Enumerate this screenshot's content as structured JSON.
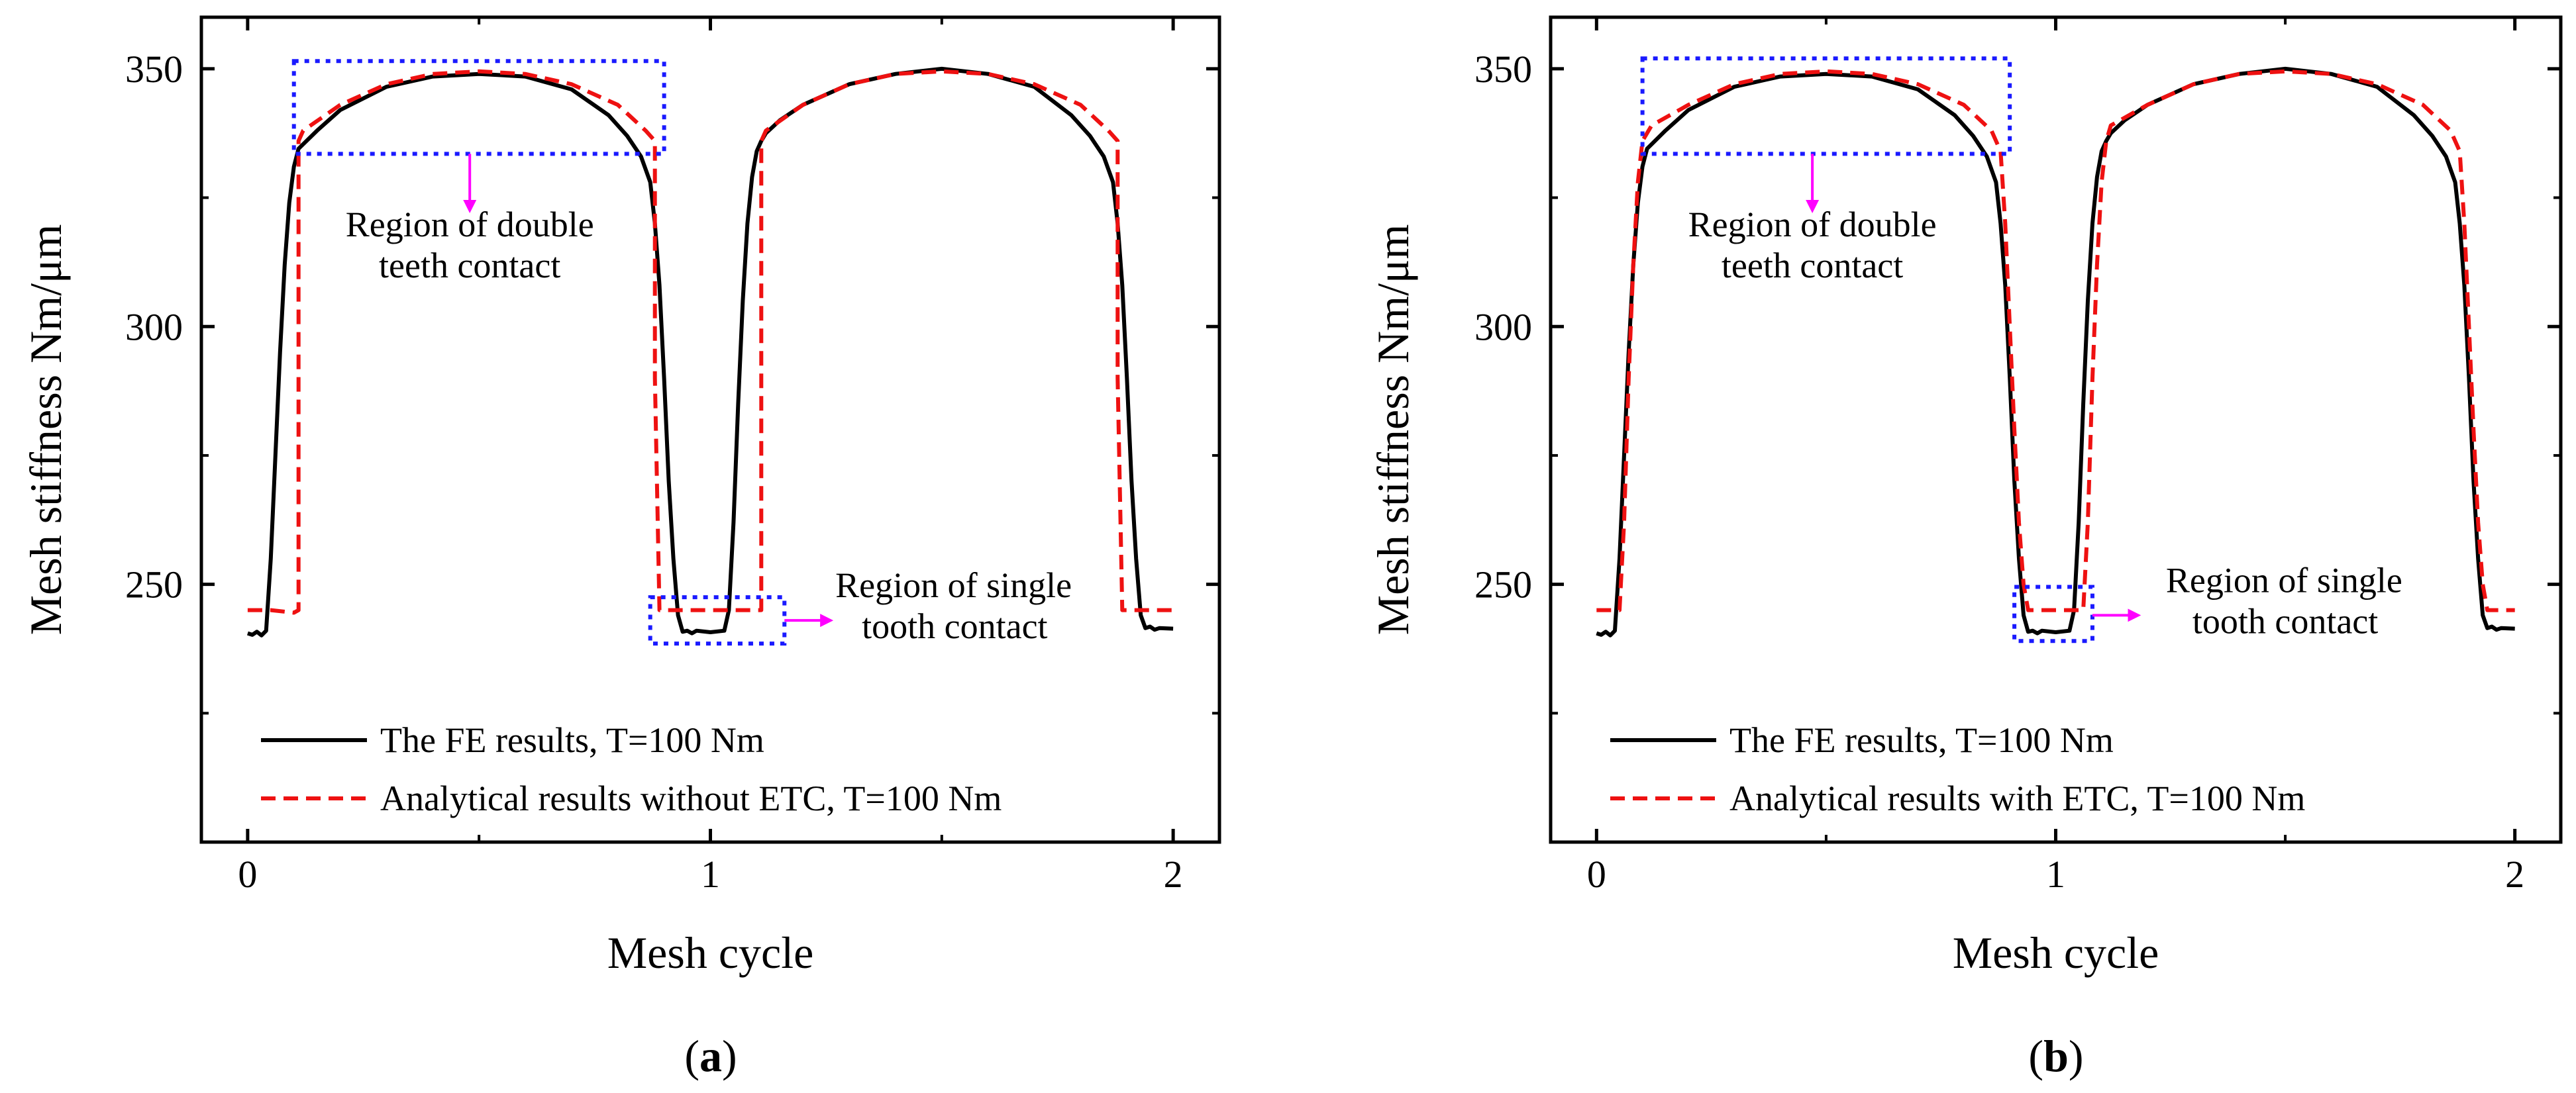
{
  "chart_data": [
    {
      "type": "line",
      "panel_label": {
        "open": "(",
        "letter": "a",
        "close": ")"
      },
      "xlabel": "Mesh cycle",
      "ylabel": "Mesh stiffness Nm/μm",
      "xlim": [
        -0.1,
        2.1
      ],
      "ylim": [
        200,
        360
      ],
      "xticks": [
        0,
        1,
        2
      ],
      "xtick_labels": [
        "0",
        "1",
        "2"
      ],
      "yticks": [
        250,
        300,
        350
      ],
      "ytick_labels": [
        "250",
        "300",
        "350"
      ],
      "legend": [
        {
          "label": "The FE results, T=100 Nm",
          "color": "#000000",
          "style": "solid"
        },
        {
          "label": "Analytical results without ETC, T=100 Nm",
          "color": "#ee1111",
          "style": "dashed"
        }
      ],
      "series": [
        {
          "name": "The FE results, T=100 Nm",
          "color": "#000000",
          "style": "solid",
          "x": [
            0,
            0.01,
            0.02,
            0.03,
            0.04,
            0.05,
            0.06,
            0.07,
            0.08,
            0.09,
            0.1,
            0.11,
            0.15,
            0.2,
            0.3,
            0.4,
            0.5,
            0.6,
            0.7,
            0.78,
            0.82,
            0.85,
            0.87,
            0.88,
            0.89,
            0.9,
            0.91,
            0.92,
            0.93,
            0.94,
            0.95,
            0.96,
            0.97,
            1.0,
            1.03,
            1.04,
            1.05,
            1.06,
            1.07,
            1.08,
            1.09,
            1.1,
            1.11,
            1.12,
            1.15,
            1.2,
            1.3,
            1.4,
            1.5,
            1.6,
            1.7,
            1.78,
            1.82,
            1.85,
            1.87,
            1.88,
            1.89,
            1.9,
            1.91,
            1.92,
            1.93,
            1.94,
            1.95,
            1.96,
            1.97,
            2.0
          ],
          "y": [
            240.5,
            240.2,
            240.8,
            240.1,
            241,
            255,
            275,
            295,
            312,
            324,
            331,
            334.5,
            338,
            342,
            346.5,
            348.5,
            349,
            348.5,
            346,
            341,
            337,
            333,
            328,
            320,
            308,
            290,
            270,
            255,
            244,
            240.8,
            241,
            240.5,
            241,
            240.7,
            241,
            245,
            262,
            285,
            305,
            320,
            329,
            334,
            336,
            337.5,
            340,
            343,
            347,
            349,
            350,
            349,
            346.5,
            341,
            337,
            333,
            328,
            320,
            308,
            290,
            270,
            255,
            244,
            241.5,
            241.8,
            241.2,
            241.5,
            241.4
          ]
        },
        {
          "name": "Analytical results without ETC, T=100 Nm",
          "color": "#ee1111",
          "style": "dashed",
          "x": [
            0,
            0.05,
            0.1,
            0.11,
            0.11,
            0.12,
            0.2,
            0.3,
            0.4,
            0.5,
            0.6,
            0.7,
            0.8,
            0.86,
            0.88,
            0.88,
            0.89,
            0.95,
            1.05,
            1.1,
            1.11,
            1.11,
            1.12,
            1.2,
            1.3,
            1.4,
            1.5,
            1.6,
            1.7,
            1.8,
            1.86,
            1.88,
            1.88,
            1.89,
            1.95,
            2.0
          ],
          "y": [
            245,
            245,
            244.5,
            245,
            336,
            338,
            343,
            347,
            349,
            349.5,
            349,
            347,
            343,
            338,
            336,
            290,
            245,
            245,
            245,
            245,
            245,
            336,
            338,
            343,
            347,
            349,
            349.5,
            349,
            347,
            343,
            338,
            336,
            290,
            245,
            245,
            245
          ]
        }
      ],
      "boxes": [
        {
          "x0": 0.1,
          "x1": 0.9,
          "y0": 333.5,
          "y1": 351.5
        },
        {
          "x0": 0.87,
          "x1": 1.16,
          "y0": 238.5,
          "y1": 247.5
        }
      ],
      "arrows": [
        {
          "x1": 0.48,
          "y1": 333.5,
          "x2": 0.48,
          "y2": 322.5,
          "dir": "down"
        },
        {
          "x1": 1.16,
          "y1": 243,
          "x2": 1.26,
          "y2": 243,
          "dir": "right"
        }
      ],
      "annotations": [
        {
          "lines": [
            "Region of double",
            "teeth contact"
          ],
          "x": 0.48,
          "y": 317.5,
          "anchor": "middle"
        },
        {
          "lines": [
            "Region of single",
            "tooth contact"
          ],
          "x": 1.27,
          "y": 247.5,
          "anchor": "start"
        }
      ]
    },
    {
      "type": "line",
      "panel_label": {
        "open": "(",
        "letter": "b",
        "close": ")"
      },
      "xlabel": "Mesh cycle",
      "ylabel": "Mesh stiffness Nm/μm",
      "xlim": [
        -0.1,
        2.1
      ],
      "ylim": [
        200,
        360
      ],
      "xticks": [
        0,
        1,
        2
      ],
      "xtick_labels": [
        "0",
        "1",
        "2"
      ],
      "yticks": [
        250,
        300,
        350
      ],
      "ytick_labels": [
        "250",
        "300",
        "350"
      ],
      "legend": [
        {
          "label": "The FE results, T=100 Nm",
          "color": "#000000",
          "style": "solid"
        },
        {
          "label": "Analytical results with ETC, T=100 Nm",
          "color": "#ee1111",
          "style": "dashed"
        }
      ],
      "series": [
        {
          "name": "The FE results, T=100 Nm",
          "color": "#000000",
          "style": "solid",
          "x": [
            0,
            0.01,
            0.02,
            0.03,
            0.04,
            0.05,
            0.06,
            0.07,
            0.08,
            0.09,
            0.1,
            0.11,
            0.15,
            0.2,
            0.3,
            0.4,
            0.5,
            0.6,
            0.7,
            0.78,
            0.82,
            0.85,
            0.87,
            0.88,
            0.89,
            0.9,
            0.91,
            0.92,
            0.93,
            0.94,
            0.95,
            0.96,
            0.97,
            1.0,
            1.03,
            1.04,
            1.05,
            1.06,
            1.07,
            1.08,
            1.09,
            1.1,
            1.11,
            1.12,
            1.15,
            1.2,
            1.3,
            1.4,
            1.5,
            1.6,
            1.7,
            1.78,
            1.82,
            1.85,
            1.87,
            1.88,
            1.89,
            1.9,
            1.91,
            1.92,
            1.93,
            1.94,
            1.95,
            1.96,
            1.97,
            2.0
          ],
          "y": [
            240.5,
            240.2,
            240.8,
            240.1,
            241,
            255,
            275,
            295,
            312,
            324,
            331,
            334.5,
            338,
            342,
            346.5,
            348.5,
            349,
            348.5,
            346,
            341,
            337,
            333,
            328,
            320,
            308,
            290,
            270,
            255,
            244,
            240.8,
            241,
            240.5,
            241,
            240.7,
            241,
            245,
            262,
            285,
            305,
            320,
            329,
            334,
            336,
            337.5,
            340,
            343,
            347,
            349,
            350,
            349,
            346.5,
            341,
            337,
            333,
            328,
            320,
            308,
            290,
            270,
            255,
            244,
            241.5,
            241.8,
            241.2,
            241.5,
            241.4
          ]
        },
        {
          "name": "Analytical results with ETC, T=100 Nm",
          "color": "#ee1111",
          "style": "dashed",
          "x": [
            0,
            0.05,
            0.06,
            0.07,
            0.08,
            0.09,
            0.1,
            0.12,
            0.2,
            0.3,
            0.4,
            0.5,
            0.6,
            0.7,
            0.8,
            0.86,
            0.88,
            0.89,
            0.9,
            0.91,
            0.92,
            0.93,
            0.94,
            1.06,
            1.07,
            1.08,
            1.09,
            1.1,
            1.11,
            1.12,
            1.2,
            1.3,
            1.4,
            1.5,
            1.6,
            1.7,
            1.8,
            1.86,
            1.88,
            1.89,
            1.9,
            1.91,
            1.92,
            1.93,
            1.94,
            2.0
          ],
          "y": [
            245,
            245,
            262,
            290,
            312,
            328,
            336,
            339,
            343,
            347,
            349,
            349.5,
            349,
            347,
            343,
            338,
            334,
            320,
            300,
            280,
            262,
            250,
            245,
            245,
            262,
            290,
            312,
            328,
            336,
            339,
            343,
            347,
            349,
            349.5,
            349,
            347,
            343,
            338,
            334,
            320,
            300,
            280,
            262,
            250,
            245,
            245
          ]
        }
      ],
      "boxes": [
        {
          "x0": 0.1,
          "x1": 0.9,
          "y0": 333.5,
          "y1": 352
        },
        {
          "x0": 0.91,
          "x1": 1.08,
          "y0": 239,
          "y1": 249.5
        }
      ],
      "arrows": [
        {
          "x1": 0.47,
          "y1": 333.5,
          "x2": 0.47,
          "y2": 322.5,
          "dir": "down"
        },
        {
          "x1": 1.08,
          "y1": 244,
          "x2": 1.18,
          "y2": 244,
          "dir": "right"
        }
      ],
      "annotations": [
        {
          "lines": [
            "Region of double",
            "teeth contact"
          ],
          "x": 0.47,
          "y": 317.5,
          "anchor": "middle"
        },
        {
          "lines": [
            "Region of single",
            "tooth contact"
          ],
          "x": 1.24,
          "y": 248.5,
          "anchor": "start"
        }
      ]
    }
  ]
}
